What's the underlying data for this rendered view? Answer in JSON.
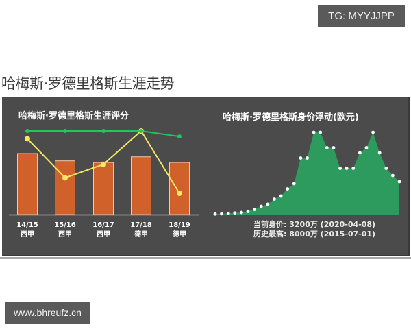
{
  "badge": {
    "tg": "TG: MYYJJPP"
  },
  "page": {
    "title": "哈梅斯·罗德里格斯生涯走势"
  },
  "watermark": {
    "text": "www.bhreufz.cn"
  },
  "colors": {
    "panel_bg": "#4b4b4b",
    "bar": "#d0612a",
    "bar_border": "#f0c8b0",
    "green_line": "#22c55e",
    "yellow_line": "#f5e663",
    "area_fill": "#2e9b5e",
    "area_marker": "#ffffff"
  },
  "left_chart": {
    "title": "哈梅斯·罗德里格斯生涯评分",
    "seasons": [
      {
        "season": "14/15",
        "league": "西甲"
      },
      {
        "season": "15/16",
        "league": "西甲"
      },
      {
        "season": "16/17",
        "league": "西甲"
      },
      {
        "season": "17/18",
        "league": "德甲"
      },
      {
        "season": "18/19",
        "league": "德甲"
      }
    ]
  },
  "right_chart": {
    "title": "哈梅斯·罗德里格斯身价浮动(欧元)",
    "current_value": "当前身价: 3200万 (2020-04-08)",
    "peak_value": "历史最高: 8000万 (2015-07-01)"
  },
  "chart_data": [
    {
      "type": "bar",
      "title": "哈梅斯·罗德里格斯生涯评分",
      "categories": [
        "14/15 西甲",
        "15/16 西甲",
        "16/17 西甲",
        "17/18 德甲",
        "18/19 德甲"
      ],
      "series": [
        {
          "name": "bars (rating)",
          "type": "bar",
          "values": [
            7.5,
            6.6,
            6.4,
            7.1,
            6.4
          ]
        },
        {
          "name": "yellow line",
          "type": "line",
          "values": [
            6.8,
            3.3,
            4.5,
            7.5,
            1.9
          ]
        },
        {
          "name": "green line",
          "type": "line",
          "values": [
            7.5,
            7.5,
            7.5,
            7.5,
            7.0
          ]
        }
      ],
      "xlabel": "",
      "ylabel": "",
      "grid": false,
      "legend": "none"
    },
    {
      "type": "area",
      "title": "哈梅斯·罗德里格斯身价浮动(欧元)",
      "unit": "万欧元",
      "x": [
        1,
        2,
        3,
        4,
        5,
        6,
        7,
        8,
        9,
        10,
        11,
        12,
        13,
        14,
        15,
        16,
        17,
        18,
        19,
        20,
        21,
        22,
        23,
        24,
        25,
        26,
        27,
        28,
        29
      ],
      "values": [
        50,
        75,
        100,
        150,
        200,
        300,
        500,
        800,
        1000,
        1500,
        1800,
        2500,
        3000,
        5500,
        5500,
        8000,
        8000,
        6500,
        6500,
        4500,
        4500,
        4500,
        6000,
        6500,
        8000,
        6000,
        4500,
        3800,
        3200
      ],
      "annotations": [
        "当前身价: 3200万 (2020-04-08)",
        "历史最高: 8000万 (2015-07-01)"
      ],
      "ylim": [
        0,
        8000
      ],
      "grid": false,
      "legend": "none"
    }
  ]
}
